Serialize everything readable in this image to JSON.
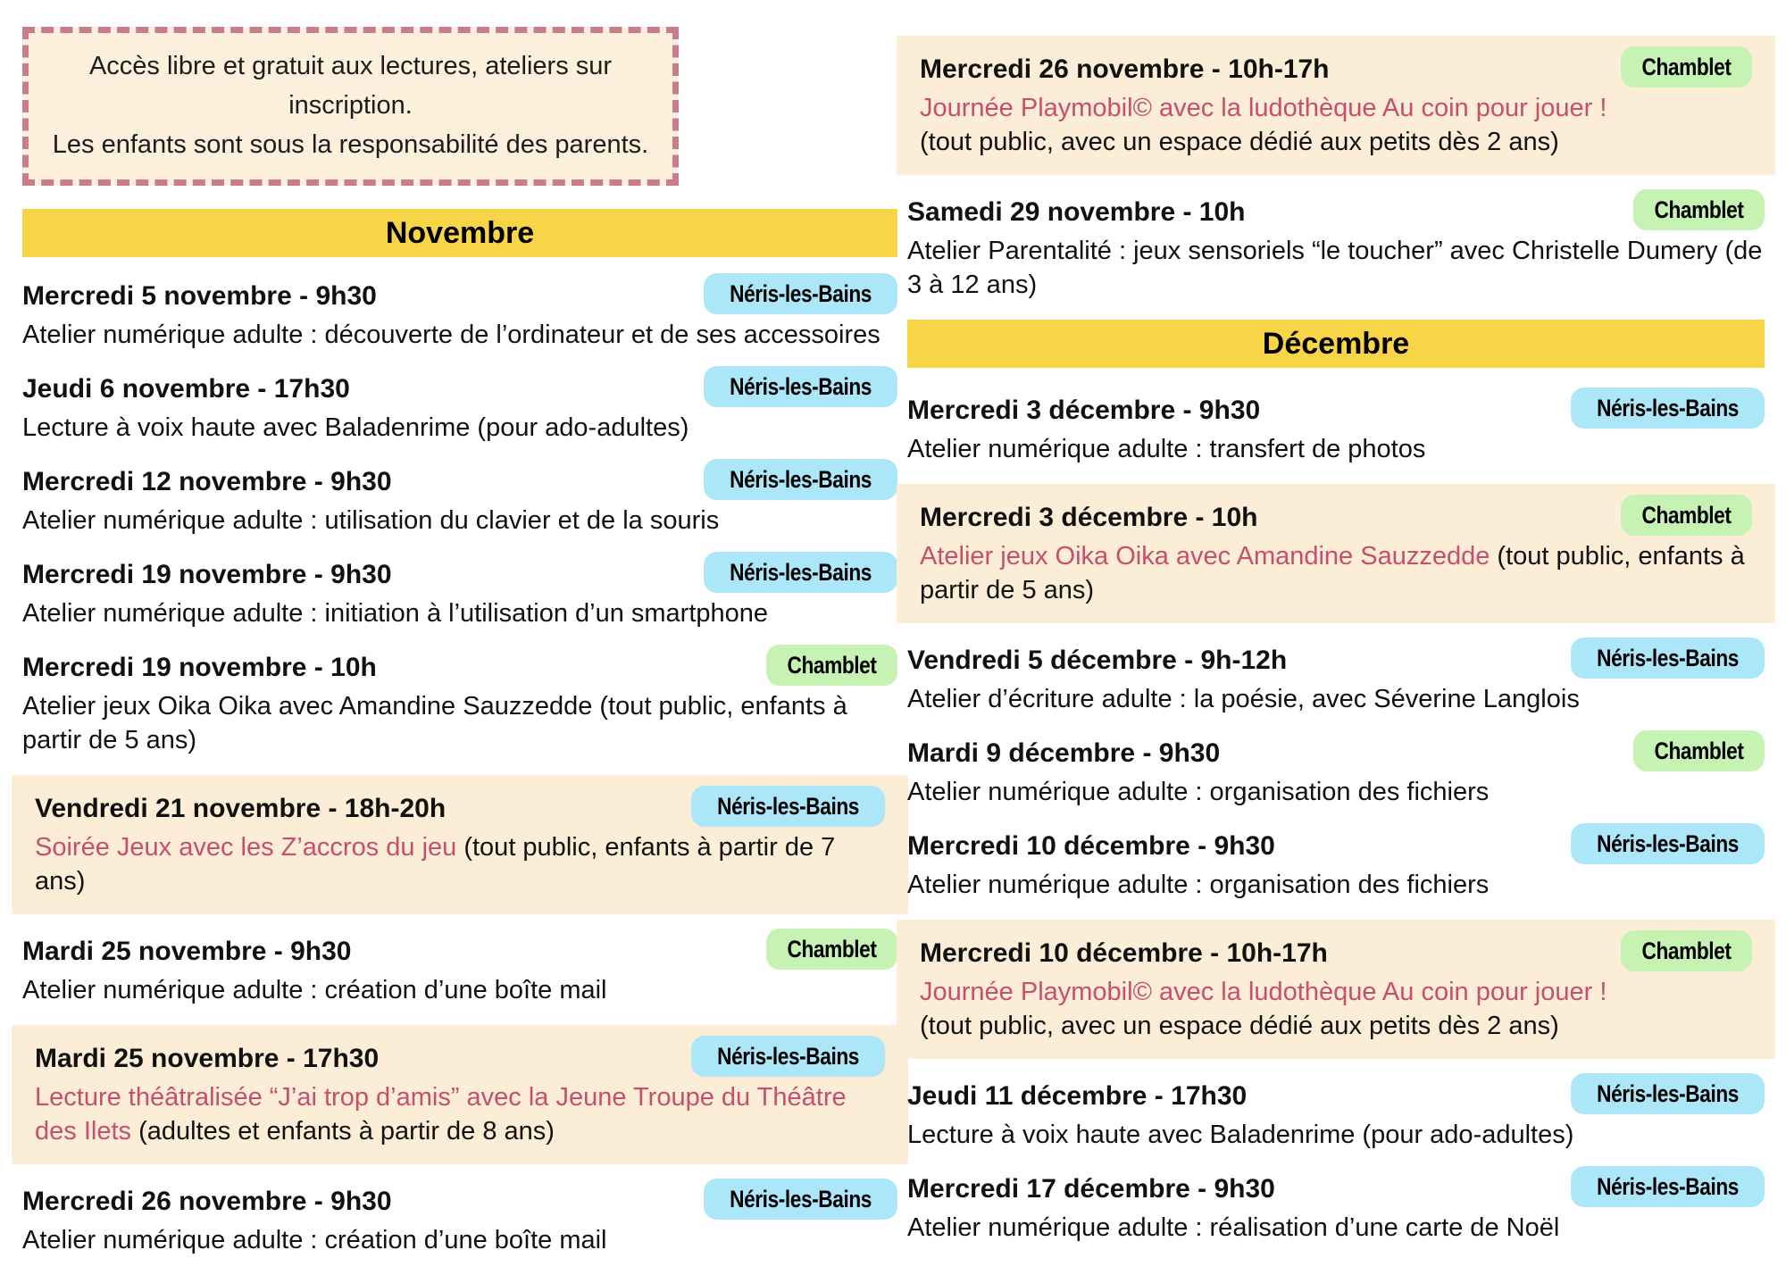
{
  "theme": {
    "yellow": "#F8D447",
    "highlight_bg": "#FCEDD6",
    "notice_bg": "#FCF0DC",
    "notice_border": "#C97C8B",
    "pink_text": "#C64F6E",
    "badges": {
      "Néris-les-Bains": "#ABE7F9",
      "Chamblet": "#C6F3B4"
    }
  },
  "notice": {
    "lines": [
      "Accès libre et gratuit aux lectures, ateliers sur inscription.",
      "Les enfants sont sous la responsabilité des parents."
    ]
  },
  "columns": [
    {
      "id": "left",
      "blocks": [
        {
          "type": "notice"
        },
        {
          "type": "month",
          "label": "Novembre"
        },
        {
          "type": "event",
          "date": "Mercredi 5 novembre - 9h30",
          "location": "Néris-les-Bains",
          "highlight": false,
          "desc": [
            {
              "text": "Atelier numérique adulte : découverte de l’ordinateur et de ses accessoires",
              "style": "normal"
            }
          ]
        },
        {
          "type": "event",
          "date": "Jeudi 6 novembre - 17h30",
          "location": "Néris-les-Bains",
          "highlight": false,
          "desc": [
            {
              "text": "Lecture à voix haute avec Baladenrime (pour ado-adultes)",
              "style": "normal"
            }
          ]
        },
        {
          "type": "event",
          "date": "Mercredi 12 novembre - 9h30",
          "location": "Néris-les-Bains",
          "highlight": false,
          "desc": [
            {
              "text": "Atelier numérique adulte : utilisation du clavier et de la souris",
              "style": "normal"
            }
          ]
        },
        {
          "type": "event",
          "date": "Mercredi 19 novembre - 9h30",
          "location": "Néris-les-Bains",
          "highlight": false,
          "desc": [
            {
              "text": "Atelier numérique adulte : initiation à l’utilisation d’un smartphone",
              "style": "normal"
            }
          ]
        },
        {
          "type": "event",
          "date": "Mercredi 19 novembre - 10h",
          "location": "Chamblet",
          "highlight": false,
          "desc": [
            {
              "text": "Atelier jeux Oika Oika avec Amandine Sauzzedde (tout public, enfants à partir de 5 ans)",
              "style": "normal"
            }
          ]
        },
        {
          "type": "event",
          "date": "Vendredi 21 novembre - 18h-20h",
          "location": "Néris-les-Bains",
          "highlight": true,
          "desc": [
            {
              "text": "Soirée Jeux avec les Z’accros du jeu ",
              "style": "pink"
            },
            {
              "text": "(tout public, enfants à partir de 7 ans)",
              "style": "normal"
            }
          ]
        },
        {
          "type": "event",
          "date": "Mardi 25 novembre - 9h30",
          "location": "Chamblet",
          "highlight": false,
          "desc": [
            {
              "text": "Atelier numérique adulte : création d’une boîte mail",
              "style": "normal"
            }
          ]
        },
        {
          "type": "event",
          "date": "Mardi 25 novembre - 17h30",
          "location": "Néris-les-Bains",
          "highlight": true,
          "desc": [
            {
              "text": "Lecture théâtralisée “J’ai trop d’amis” avec la Jeune Troupe du Théâtre des Ilets ",
              "style": "pink"
            },
            {
              "text": "(adultes et enfants à partir de 8 ans)",
              "style": "normal"
            }
          ]
        },
        {
          "type": "event",
          "date": "Mercredi 26 novembre - 9h30",
          "location": "Néris-les-Bains",
          "highlight": false,
          "desc": [
            {
              "text": "Atelier numérique adulte : création d’une boîte mail",
              "style": "normal"
            }
          ]
        }
      ]
    },
    {
      "id": "right",
      "blocks": [
        {
          "type": "event",
          "date": "Mercredi 26 novembre - 10h-17h",
          "location": "Chamblet",
          "highlight": true,
          "desc": [
            {
              "text": "Journée Playmobil© avec la ludothèque Au coin pour jouer !",
              "style": "pink",
              "block": true
            },
            {
              "text": "(tout public, avec un espace dédié aux petits dès 2 ans)",
              "style": "normal",
              "block": true
            }
          ]
        },
        {
          "type": "event",
          "date": "Samedi 29 novembre - 10h",
          "location": "Chamblet",
          "highlight": false,
          "desc": [
            {
              "text": "Atelier Parentalité : jeux sensoriels “le toucher” avec Christelle Dumery (de 3 à 12 ans)",
              "style": "normal"
            }
          ]
        },
        {
          "type": "month",
          "label": "Décembre"
        },
        {
          "type": "event",
          "date": "Mercredi 3 décembre - 9h30",
          "location": "Néris-les-Bains",
          "highlight": false,
          "desc": [
            {
              "text": "Atelier numérique adulte : transfert de photos",
              "style": "normal"
            }
          ]
        },
        {
          "type": "event",
          "date": "Mercredi 3 décembre - 10h",
          "location": "Chamblet",
          "highlight": true,
          "desc": [
            {
              "text": "Atelier jeux Oika Oika avec Amandine Sauzzedde ",
              "style": "pink"
            },
            {
              "text": "(tout public, enfants à partir de 5 ans)",
              "style": "normal"
            }
          ]
        },
        {
          "type": "event",
          "date": "Vendredi 5 décembre - 9h-12h",
          "location": "Néris-les-Bains",
          "highlight": false,
          "desc": [
            {
              "text": "Atelier d’écriture adulte : la poésie, avec Séverine Langlois",
              "style": "normal"
            }
          ]
        },
        {
          "type": "event",
          "date": "Mardi 9 décembre - 9h30",
          "location": "Chamblet",
          "highlight": false,
          "desc": [
            {
              "text": "Atelier numérique adulte : organisation des fichiers",
              "style": "normal"
            }
          ]
        },
        {
          "type": "event",
          "date": "Mercredi 10 décembre - 9h30",
          "location": "Néris-les-Bains",
          "highlight": false,
          "desc": [
            {
              "text": "Atelier numérique adulte : organisation des fichiers",
              "style": "normal"
            }
          ]
        },
        {
          "type": "event",
          "date": "Mercredi 10 décembre - 10h-17h",
          "location": "Chamblet",
          "highlight": true,
          "desc": [
            {
              "text": "Journée Playmobil© avec la ludothèque Au coin pour jouer !",
              "style": "pink",
              "block": true
            },
            {
              "text": "(tout public, avec un espace dédié aux petits dès 2 ans)",
              "style": "normal",
              "block": true
            }
          ]
        },
        {
          "type": "event",
          "date": "Jeudi 11 décembre - 17h30",
          "location": "Néris-les-Bains",
          "highlight": false,
          "desc": [
            {
              "text": "Lecture à voix haute avec Baladenrime (pour ado-adultes)",
              "style": "normal"
            }
          ]
        },
        {
          "type": "event",
          "date": "Mercredi 17 décembre - 9h30",
          "location": "Néris-les-Bains",
          "highlight": false,
          "desc": [
            {
              "text": "Atelier numérique adulte : réalisation d’une carte de Noël",
              "style": "normal"
            }
          ]
        }
      ]
    }
  ]
}
